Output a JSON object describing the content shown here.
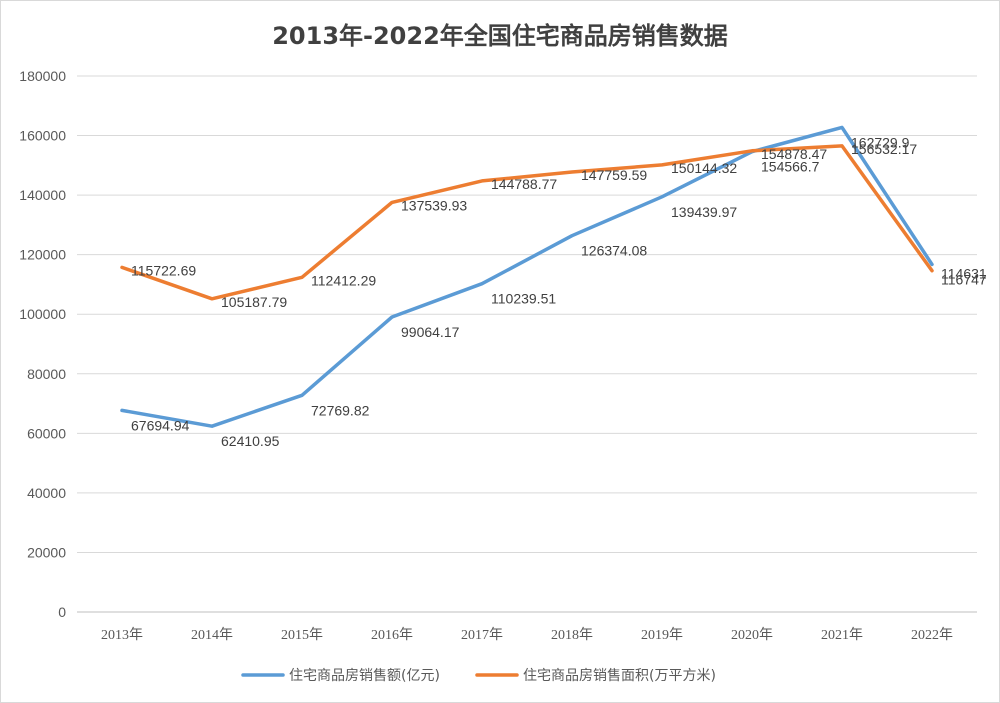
{
  "colors": {
    "series1": "#5b9bd5",
    "series2": "#ed7d31",
    "grid": "#d9d9d9",
    "text": "#595959"
  },
  "chart_data": {
    "type": "line",
    "title": "2013年-2022年全国住宅商品房销售数据",
    "categories": [
      "2013年",
      "2014年",
      "2015年",
      "2016年",
      "2017年",
      "2018年",
      "2019年",
      "2020年",
      "2021年",
      "2022年"
    ],
    "ylim": [
      0,
      180000
    ],
    "yticks": [
      "0",
      "20000",
      "40000",
      "60000",
      "80000",
      "100000",
      "120000",
      "140000",
      "160000",
      "180000"
    ],
    "grid": true,
    "legend": "bottom",
    "series": [
      {
        "name": "住宅商品房销售额(亿元)",
        "values": [
          67694.94,
          62410.95,
          72769.82,
          99064.17,
          110239.51,
          126374.08,
          139439.97,
          154566.7,
          162729.9,
          116747
        ],
        "labels": [
          "67694.94",
          "62410.95",
          "72769.82",
          "99064.17",
          "110239.51",
          "126374.08",
          "139439.97",
          "154566.7",
          "162729.9",
          "116747"
        ]
      },
      {
        "name": "住宅商品房销售面积(万平方米)",
        "values": [
          115722.69,
          105187.79,
          112412.29,
          137539.93,
          144788.77,
          147759.59,
          150144.32,
          154878.47,
          156532.17,
          114631
        ],
        "labels": [
          "115722.69",
          "105187.79",
          "112412.29",
          "137539.93",
          "144788.77",
          "147759.59",
          "150144.32",
          "154878.47",
          "156532.17",
          "114631"
        ]
      }
    ]
  }
}
